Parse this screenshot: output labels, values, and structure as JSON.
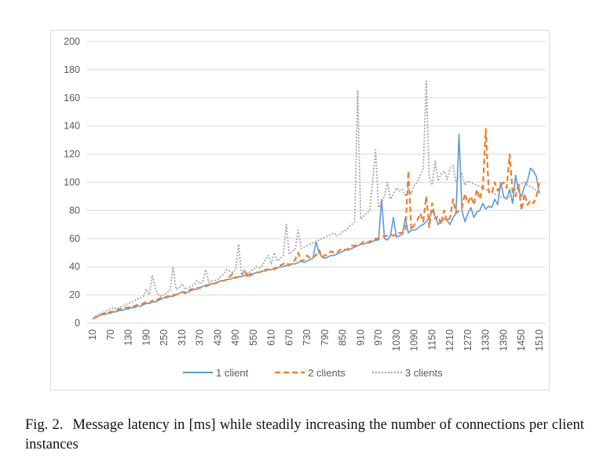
{
  "chart_data": {
    "type": "line",
    "title": "",
    "xlabel": "",
    "ylabel": "",
    "ylim": [
      0,
      200
    ],
    "yticks": [
      0,
      20,
      40,
      60,
      80,
      100,
      120,
      140,
      160,
      180,
      200
    ],
    "x": [
      10,
      20,
      30,
      40,
      50,
      60,
      70,
      80,
      90,
      100,
      110,
      120,
      130,
      140,
      150,
      160,
      170,
      180,
      190,
      200,
      210,
      220,
      230,
      240,
      250,
      260,
      270,
      280,
      290,
      300,
      310,
      320,
      330,
      340,
      350,
      360,
      370,
      380,
      390,
      400,
      410,
      420,
      430,
      440,
      450,
      460,
      470,
      480,
      490,
      500,
      510,
      520,
      530,
      540,
      550,
      560,
      570,
      580,
      590,
      600,
      610,
      620,
      630,
      640,
      650,
      660,
      670,
      680,
      690,
      700,
      710,
      720,
      730,
      740,
      750,
      760,
      770,
      780,
      790,
      800,
      810,
      820,
      830,
      840,
      850,
      860,
      870,
      880,
      890,
      900,
      910,
      920,
      930,
      940,
      950,
      960,
      970,
      980,
      990,
      1000,
      1010,
      1020,
      1030,
      1040,
      1050,
      1060,
      1070,
      1080,
      1090,
      1100,
      1110,
      1120,
      1130,
      1140,
      1150,
      1160,
      1170,
      1180,
      1190,
      1200,
      1210,
      1220,
      1230,
      1240,
      1250,
      1260,
      1270,
      1280,
      1290,
      1300,
      1310,
      1320,
      1330,
      1340,
      1350,
      1360,
      1370,
      1380,
      1390,
      1400,
      1410,
      1420,
      1430,
      1440,
      1450,
      1460,
      1470,
      1480,
      1490,
      1500,
      1510
    ],
    "xtick_labels": [
      "10",
      "70",
      "130",
      "190",
      "250",
      "310",
      "370",
      "430",
      "490",
      "550",
      "610",
      "670",
      "730",
      "790",
      "850",
      "910",
      "970",
      "1030",
      "1090",
      "1150",
      "1210",
      "1270",
      "1330",
      "1390",
      "1450",
      "1510"
    ],
    "series": [
      {
        "name": "1 client",
        "color": "#5b9bd5",
        "dash": "solid",
        "values": [
          3,
          4,
          5,
          6,
          6,
          7,
          7,
          8,
          8,
          9,
          9,
          10,
          10,
          11,
          11,
          12,
          12,
          13,
          14,
          14,
          15,
          15,
          16,
          17,
          18,
          18,
          19,
          19,
          20,
          21,
          22,
          21,
          22,
          23,
          24,
          24,
          25,
          26,
          27,
          27,
          28,
          28,
          29,
          30,
          30,
          31,
          31,
          32,
          32,
          33,
          33,
          34,
          34,
          35,
          35,
          36,
          36,
          37,
          37,
          38,
          38,
          39,
          39,
          40,
          40,
          41,
          41,
          42,
          42,
          43,
          44,
          43,
          44,
          45,
          46,
          58,
          50,
          47,
          46,
          47,
          48,
          48,
          49,
          50,
          51,
          52,
          52,
          53,
          54,
          55,
          56,
          56,
          57,
          57,
          58,
          59,
          59,
          88,
          60,
          59,
          62,
          75,
          61,
          62,
          63,
          75,
          64,
          66,
          66,
          67,
          69,
          70,
          72,
          74,
          80,
          76,
          70,
          73,
          74,
          73,
          70,
          75,
          78,
          134,
          80,
          72,
          78,
          82,
          75,
          79,
          80,
          85,
          81,
          83,
          82,
          88,
          84,
          100,
          90,
          88,
          95,
          85,
          105,
          94,
          90,
          97,
          101,
          110,
          108,
          104,
          92
        ]
      },
      {
        "name": "2 clients",
        "color": "#ed7d31",
        "dash": "dashed",
        "values": [
          3,
          4,
          5,
          6,
          7,
          7,
          8,
          8,
          9,
          10,
          10,
          11,
          11,
          12,
          12,
          13,
          13,
          14,
          15,
          14,
          16,
          16,
          17,
          18,
          18,
          19,
          19,
          20,
          20,
          21,
          22,
          22,
          23,
          24,
          24,
          25,
          25,
          26,
          26,
          27,
          28,
          28,
          29,
          30,
          30,
          31,
          33,
          35,
          32,
          33,
          34,
          38,
          32,
          34,
          35,
          36,
          36,
          37,
          38,
          38,
          39,
          38,
          40,
          41,
          42,
          43,
          41,
          43,
          45,
          50,
          44,
          45,
          48,
          46,
          47,
          48,
          52,
          47,
          48,
          49,
          51,
          50,
          50,
          52,
          53,
          52,
          53,
          55,
          55,
          56,
          56,
          58,
          57,
          58,
          59,
          60,
          60,
          61,
          62,
          62,
          63,
          62,
          63,
          64,
          64,
          65,
          108,
          66,
          70,
          73,
          78,
          72,
          90,
          68,
          85,
          74,
          76,
          70,
          80,
          72,
          75,
          88,
          78,
          80,
          82,
          92,
          85,
          90,
          84,
          95,
          88,
          96,
          138,
          93,
          92,
          100,
          94,
          98,
          100,
          96,
          120,
          93,
          90,
          99,
          80,
          92,
          84,
          87,
          85,
          90,
          100
        ]
      },
      {
        "name": "3 clients",
        "color": "#a5a5a5",
        "dash": "dotted",
        "values": [
          3,
          5,
          6,
          7,
          8,
          9,
          10,
          11,
          10,
          11,
          12,
          13,
          14,
          15,
          16,
          17,
          18,
          19,
          24,
          20,
          34,
          25,
          20,
          19,
          20,
          22,
          23,
          40,
          24,
          25,
          28,
          24,
          25,
          26,
          27,
          30,
          28,
          29,
          38,
          29,
          30,
          30,
          31,
          33,
          35,
          38,
          37,
          36,
          38,
          56,
          34,
          38,
          35,
          37,
          38,
          40,
          39,
          41,
          45,
          48,
          42,
          50,
          44,
          46,
          48,
          70,
          49,
          51,
          52,
          66,
          53,
          54,
          55,
          56,
          57,
          58,
          59,
          60,
          61,
          62,
          63,
          64,
          62,
          63,
          65,
          66,
          68,
          70,
          72,
          165,
          74,
          76,
          78,
          80,
          100,
          123,
          82,
          86,
          90,
          100,
          88,
          92,
          96,
          94,
          95,
          90,
          96,
          92,
          98,
          100,
          105,
          110,
          172,
          104,
          98,
          115,
          101,
          106,
          108,
          102,
          110,
          112,
          100,
          104,
          106,
          98,
          101,
          100,
          99,
          98,
          97,
          96,
          95,
          94,
          93,
          92,
          91,
          90,
          89,
          88,
          90,
          93,
          95,
          97,
          99,
          100,
          98,
          97,
          96,
          94,
          93
        ]
      }
    ]
  },
  "caption": {
    "label": "Fig. 2.",
    "text": "Message latency in [ms] while steadily increasing the number of connections per client instances"
  }
}
